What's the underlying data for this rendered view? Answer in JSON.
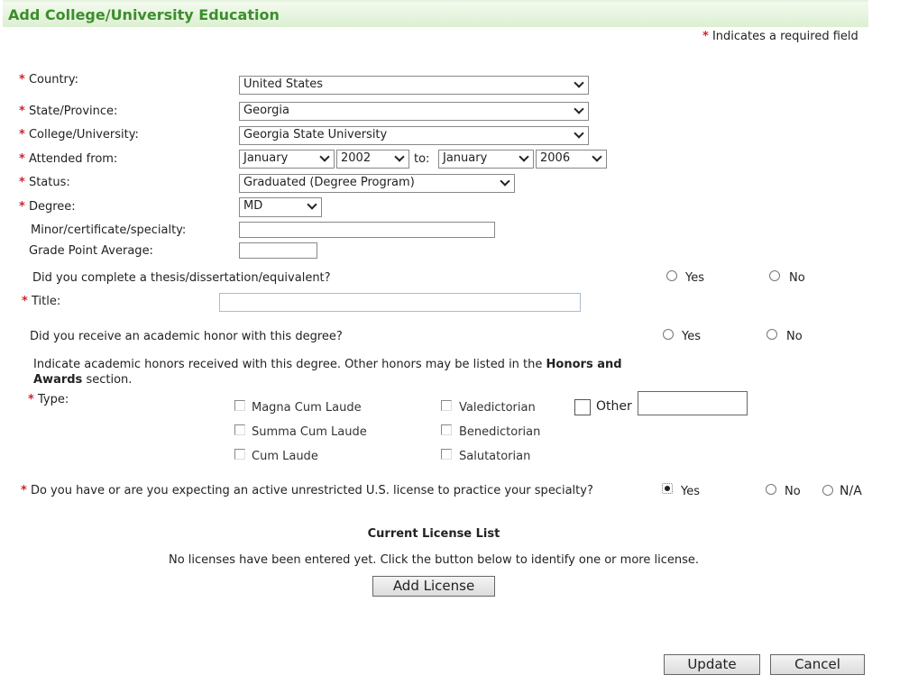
{
  "header": {
    "title": "Add College/University Education"
  },
  "required_note": "Indicates a required field",
  "required_marker": "*",
  "fields": {
    "country": {
      "label": "Country:",
      "value": "United States"
    },
    "state": {
      "label": "State/Province:",
      "value": "Georgia"
    },
    "college": {
      "label": "College/University:",
      "value": "Georgia State University"
    },
    "attended": {
      "label": "Attended from:",
      "from_month": "January",
      "from_year": "2002",
      "to_label": "to:",
      "to_month": "January",
      "to_year": "2006"
    },
    "status": {
      "label": "Status:",
      "value": "Graduated (Degree Program)"
    },
    "degree": {
      "label": "Degree:",
      "value": "MD"
    },
    "minor": {
      "label": "Minor/certificate/specialty:",
      "value": ""
    },
    "gpa": {
      "label": "Grade Point Average:",
      "value": ""
    }
  },
  "thesis": {
    "question": "Did you complete a thesis/dissertation/equivalent?",
    "yes": "Yes",
    "no": "No",
    "selected": null,
    "title_label": "Title:",
    "title_value": ""
  },
  "honor": {
    "question": "Did you receive an academic honor with this degree?",
    "yes": "Yes",
    "no": "No",
    "selected": null,
    "note_pre": "Indicate academic honors received with this degree. Other honors may be listed in the ",
    "note_bold1": "Honors and",
    "note_bold2": "Awards",
    "note_post": " section.",
    "type_label": "Type:",
    "types": [
      "Magna Cum Laude",
      "Summa Cum Laude",
      "Cum Laude",
      "Valedictorian",
      "Benedictorian",
      "Salutatorian"
    ],
    "other_label": "Other",
    "other_value": ""
  },
  "license": {
    "question": "Do you have or are you expecting an active unrestricted U.S. license to practice your specialty?",
    "yes": "Yes",
    "no": "No",
    "na": "N/A",
    "selected": "Yes",
    "list_title": "Current License List",
    "empty_text": "No licenses have been entered yet. Click the button below to identify one or more license.",
    "add_button": "Add License"
  },
  "actions": {
    "update": "Update",
    "cancel": "Cancel"
  }
}
